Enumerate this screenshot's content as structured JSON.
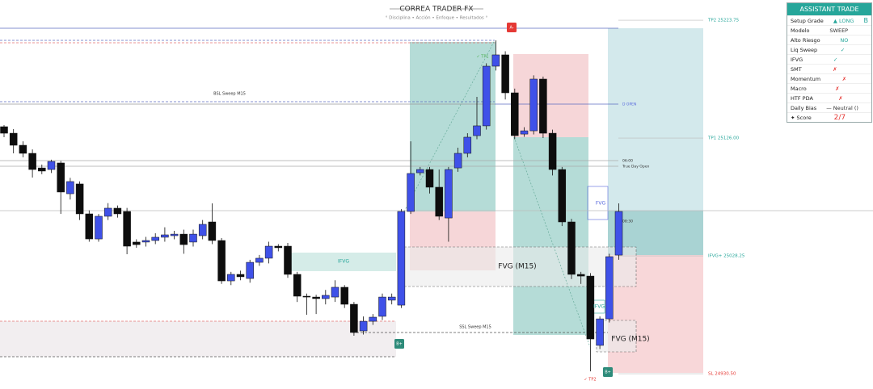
{
  "chart_data": {
    "type": "candlestick",
    "title": "CORREA TRADER FX",
    "subtitle": "° Disciplina • Acción • Enfoque • Resultados °",
    "ylim": [
      24920.5,
      25240.5
    ],
    "up_color": "#3f51e8",
    "down_color": "#0d0d0d",
    "open": [
      25135.4,
      25130.0,
      25120.0,
      25113.3,
      25101.2,
      25099.9,
      25105.3,
      25079.8,
      25087.9,
      25063.1,
      25042.3,
      25061.1,
      25067.8,
      25065.1,
      25039.7,
      25039.7,
      25041.0,
      25043.7,
      25045.0,
      25046.3,
      25039.7,
      25045.0,
      25056.4,
      25041.0,
      25007.5,
      25012.9,
      25009.5,
      25022.9,
      25026.3,
      25036.3,
      25036.3,
      25012.9,
      24994.8,
      24994.1,
      24992.8,
      24994.1,
      25002.2,
      24988.1,
      24966.0,
      24974.0,
      24978.1,
      24991.5,
      24987.4,
      25065.1,
      25097.2,
      25099.9,
      25085.2,
      25059.7,
      25101.2,
      25113.3,
      25128.0,
      25136.1,
      25185.6,
      25195.0,
      25163.5,
      25129.3,
      25132.0,
      25174.9,
      25130.0,
      25099.9,
      25056.4,
      25012.9,
      25011.5,
      24954.0,
      24976.0,
      25028.9
    ],
    "high": [
      25136.7,
      25133.4,
      25123.3,
      25116.6,
      25104,
      25108,
      25107,
      25093,
      25090,
      25066,
      25063,
      25072,
      25070,
      25068,
      25042,
      25044,
      25047,
      25052,
      25049,
      25050,
      25050,
      25058,
      25071.8,
      25043,
      25015,
      25016,
      25025,
      25029,
      25040,
      25038,
      25039,
      25015,
      24997,
      24996,
      25000,
      25008,
      25004,
      24990,
      24978,
      24980,
      24997,
      24997,
      25067,
      25123.3,
      25102,
      25102,
      25099.9,
      25102,
      25118,
      25130,
      25160.2,
      25188,
      25207.0,
      25198,
      25167,
      25135,
      25178,
      25177,
      25133,
      25102,
      25059,
      25015,
      25014,
      24978,
      25030,
      25071.8
    ],
    "low": [
      25126.7,
      25113.3,
      25110.0,
      25093.2,
      25096,
      25097,
      25063.1,
      25075,
      25058,
      25040,
      25040,
      25058,
      25060,
      25029.6,
      25035,
      25036,
      25038,
      25040,
      25042,
      25030,
      25036,
      25042,
      25038,
      25005,
      25004,
      25008,
      25006,
      25020,
      25022,
      25032,
      25010,
      24990,
      24979.4,
      24980,
      24988,
      24990,
      24985,
      24962,
      24963,
      24971,
      24975,
      24988,
      24985,
      25063,
      25095,
      25080,
      25058,
      25040,
      25098,
      25110,
      25125,
      25133,
      25182,
      25158,
      25125,
      25127,
      25129,
      25126,
      25095,
      25053,
      25009,
      25005,
      24932.5,
      24951,
      24973,
      25025
    ],
    "close": [
      25130.0,
      25120.0,
      25113.3,
      25099.9,
      25098.6,
      25106.6,
      25081.2,
      25089.9,
      25063.1,
      25042.3,
      25061.1,
      25067.8,
      25063.1,
      25036.3,
      25037.6,
      25041.0,
      25043.7,
      25045.7,
      25046.3,
      25037.6,
      25046.3,
      25054.4,
      25041.0,
      25007.5,
      25012.9,
      25010.9,
      25022.9,
      25026.3,
      25036.3,
      25035.0,
      25012.9,
      24994.8,
      24994.1,
      24992.8,
      24995.5,
      25002.2,
      24988.1,
      24964.7,
      24974.0,
      24977.4,
      24994.1,
      24994.1,
      25065.1,
      25096.6,
      25099.9,
      25085.2,
      25061.1,
      25099.9,
      25113.3,
      25126.7,
      25136.1,
      25185.6,
      25195.0,
      25163.5,
      25128.0,
      25132.0,
      25174.9,
      25130.0,
      25099.9,
      25056.4,
      25012.9,
      25011.5,
      24959.3,
      24976.0,
      25027.6,
      25065.1
    ],
    "levels": [
      {
        "label": "TP2 25223.75",
        "value": 25223.75,
        "color": "#26a69a"
      },
      {
        "label": "TP1 25126.00",
        "value": 25126.0,
        "color": "#26a69a"
      },
      {
        "label": "IFVG+ 25028.25",
        "value": 25028.25,
        "color": "#26a69a"
      },
      {
        "label": "SL 24930.50",
        "value": 24930.5,
        "color": "#e53935"
      }
    ],
    "annotations": [
      "BSL Sweep M15",
      "SSL Sweep M15",
      "IFVG",
      "FVG (M15)",
      "FVG (M15)",
      "FVG",
      "IFVG",
      "D OPEN",
      "06:00",
      "True Day Open",
      "08:30",
      "✓ TP1",
      "A-",
      "B+",
      "B+",
      "✓ TP2"
    ]
  },
  "panel": {
    "title": "ASSISTANT TRADE",
    "rows": [
      [
        "Setup Grade",
        "▲ LONG",
        "B"
      ],
      [
        "Modelo",
        "SWEEP"
      ],
      [
        "Alto Riesgo",
        "NO"
      ],
      [
        "Liq Sweep",
        "✓"
      ],
      [
        "IFVG",
        "✓"
      ],
      [
        "SMT",
        "✗"
      ],
      [
        "Momentum",
        "✗"
      ],
      [
        "Macro",
        "✗"
      ],
      [
        "HTF PDA",
        "✗"
      ],
      [
        "Daily Bias",
        "— Neutral ()"
      ],
      [
        "✦ Score",
        "2/7"
      ]
    ]
  }
}
